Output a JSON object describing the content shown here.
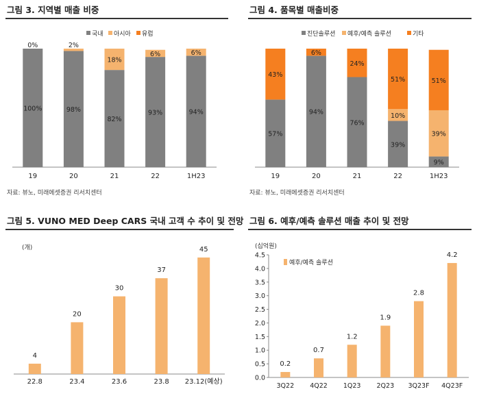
{
  "colors": {
    "gray": "#808080",
    "orange": "#f57f20",
    "peach": "#f5b36e",
    "axis": "#888888"
  },
  "chart_data": [
    {
      "id": "fig3",
      "title": "그림 3. 지역별 매출 비중",
      "source": "자료: 뷰노, 미래에셋증권 리서치센터",
      "type": "bar",
      "stacked": true,
      "categories": [
        "19",
        "20",
        "21",
        "22",
        "1H23"
      ],
      "series": [
        {
          "name": "국내",
          "color": "gray",
          "values": [
            100,
            98,
            82,
            93,
            94
          ],
          "labels": [
            "100%",
            "98%",
            "82%",
            "93%",
            "94%"
          ]
        },
        {
          "name": "아시아",
          "color": "peach",
          "values": [
            0,
            2,
            18,
            6,
            6
          ],
          "labels": [
            "0%",
            "2%",
            "18%",
            "6%",
            "6%"
          ]
        },
        {
          "name": "유럽",
          "color": "orange",
          "values": [
            0,
            0,
            0,
            0,
            0
          ],
          "labels": [
            "",
            "",
            "",
            "",
            ""
          ]
        }
      ],
      "ylim": [
        0,
        100
      ]
    },
    {
      "id": "fig4",
      "title": "그림 4. 품목별 매출비중",
      "source": "자료: 뷰노, 미래에셋증권 리서치센터",
      "type": "bar",
      "stacked": true,
      "categories": [
        "19",
        "20",
        "21",
        "22",
        "1H23"
      ],
      "series": [
        {
          "name": "진단솔루션",
          "color": "gray",
          "values": [
            57,
            94,
            76,
            39,
            9
          ],
          "labels": [
            "57%",
            "94%",
            "76%",
            "39%",
            "9%"
          ]
        },
        {
          "name": "예후/예측 솔루션",
          "color": "peach",
          "values": [
            0,
            0,
            0,
            10,
            39
          ],
          "labels": [
            "",
            "",
            "",
            "10%",
            "39%"
          ]
        },
        {
          "name": "기타",
          "color": "orange",
          "values": [
            43,
            6,
            24,
            51,
            51
          ],
          "labels": [
            "43%",
            "6%",
            "24%",
            "51%",
            "51%"
          ]
        }
      ],
      "ylim": [
        0,
        100
      ]
    },
    {
      "id": "fig5",
      "title": "그림 5. VUNO MED Deep CARS 국내 고객 수 추이 및 전망",
      "type": "bar",
      "unit": "(개)",
      "categories": [
        "22.8",
        "23.4",
        "23.6",
        "23.8",
        "23.12(예상)"
      ],
      "values": [
        4,
        20,
        30,
        37,
        45
      ],
      "labels": [
        "4",
        "20",
        "30",
        "37",
        "45"
      ],
      "ylim": [
        0,
        50
      ]
    },
    {
      "id": "fig6",
      "title": "그림 6. 예후/예측 솔루션 매출 추이 및 전망",
      "type": "bar",
      "unit": "(십억원)",
      "legend": "예후/예측 솔루션",
      "categories": [
        "3Q22",
        "4Q22",
        "1Q23",
        "2Q23",
        "3Q23F",
        "4Q23F"
      ],
      "values": [
        0.2,
        0.7,
        1.2,
        1.9,
        2.8,
        4.2
      ],
      "labels": [
        "0.2",
        "0.7",
        "1.2",
        "1.9",
        "2.8",
        "4.2"
      ],
      "yticks": [
        "0.0",
        "0.5",
        "1.0",
        "1.5",
        "2.0",
        "2.5",
        "3.0",
        "3.5",
        "4.0",
        "4.5"
      ],
      "ylim": [
        0,
        4.5
      ]
    }
  ]
}
